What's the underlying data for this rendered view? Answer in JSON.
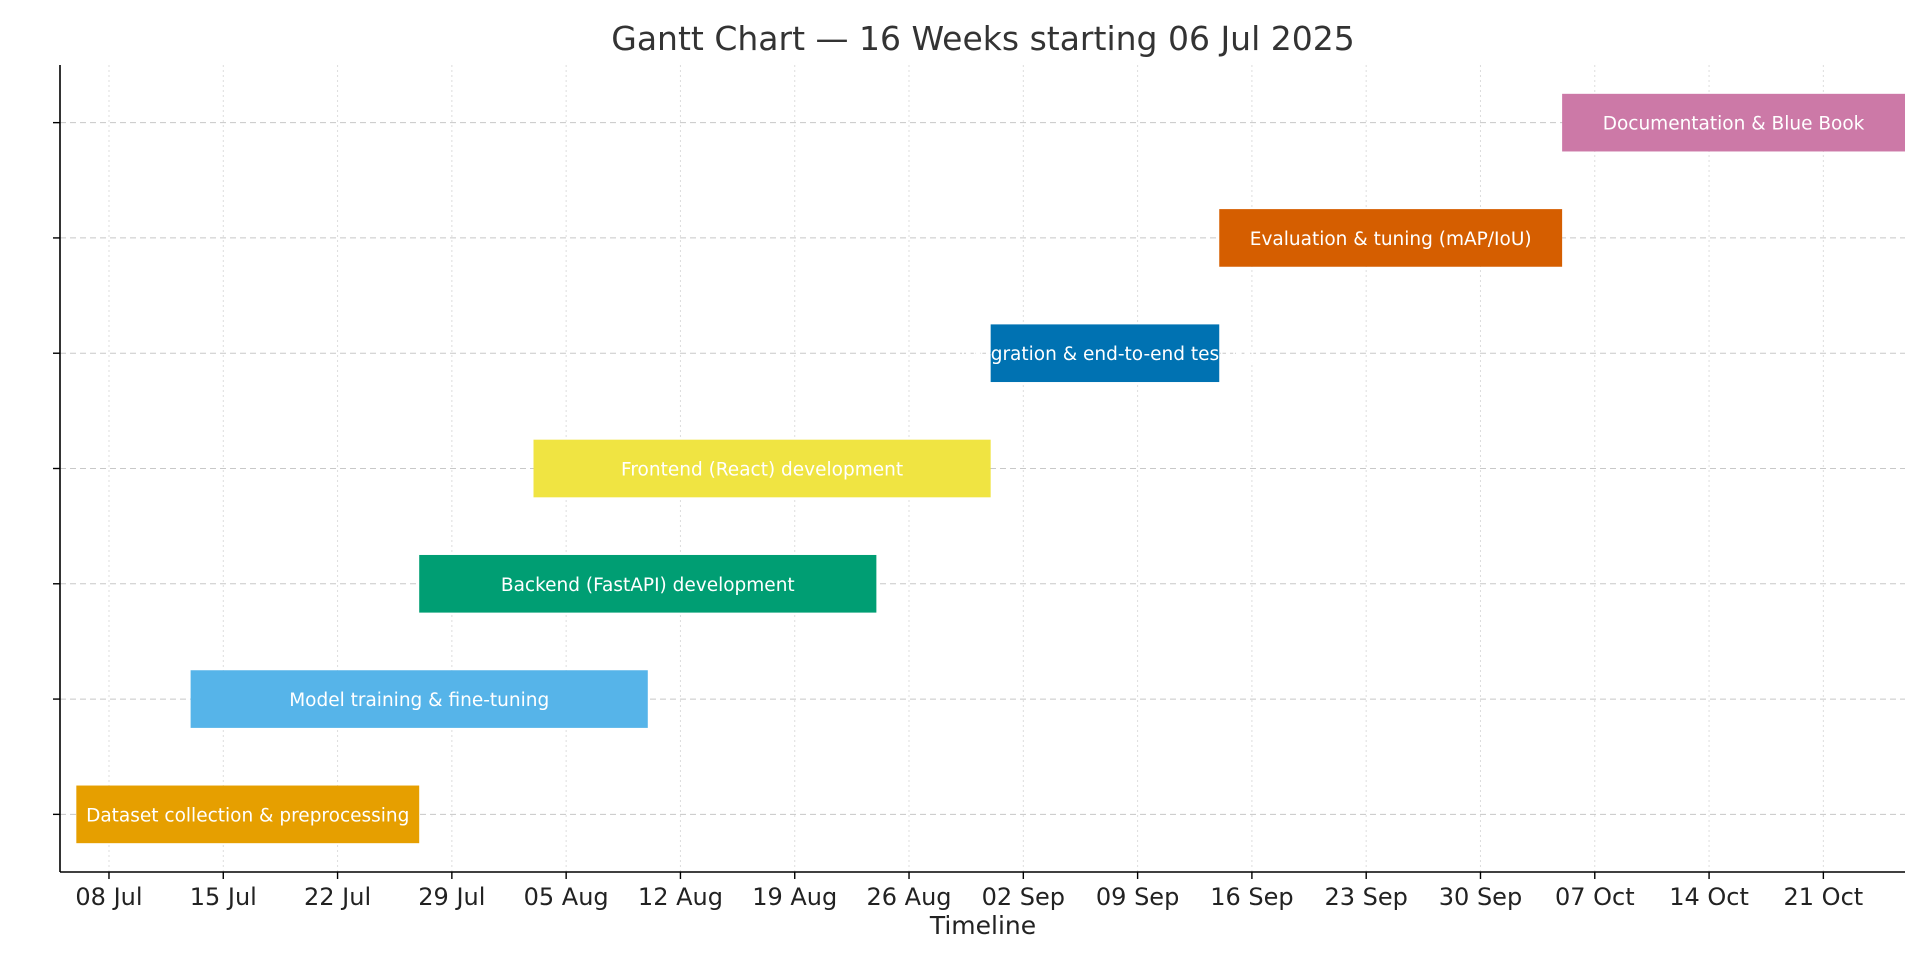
{
  "chart_data": {
    "type": "gantt",
    "title": "Gantt Chart — 16 Weeks starting 06 Jul 2025",
    "xlabel": "Timeline",
    "ylabel": "",
    "x_range": [
      "2025-07-05",
      "2025-10-26"
    ],
    "x_ticks": [
      "2025-07-08",
      "2025-07-15",
      "2025-07-22",
      "2025-07-29",
      "2025-08-05",
      "2025-08-12",
      "2025-08-19",
      "2025-08-26",
      "2025-09-02",
      "2025-09-09",
      "2025-09-16",
      "2025-09-23",
      "2025-09-30",
      "2025-10-07",
      "2025-10-14",
      "2025-10-21"
    ],
    "x_tick_labels": [
      "08 Jul",
      "15 Jul",
      "22 Jul",
      "29 Jul",
      "05 Aug",
      "12 Aug",
      "19 Aug",
      "26 Aug",
      "02 Sep",
      "09 Sep",
      "16 Sep",
      "23 Sep",
      "30 Sep",
      "07 Oct",
      "14 Oct",
      "21 Oct"
    ],
    "grid": {
      "x": true,
      "y": true
    },
    "tasks": [
      {
        "name": "Dataset collection & preprocessing",
        "start": "2025-07-06",
        "end": "2025-07-27",
        "color": "#E69F00"
      },
      {
        "name": "Model training & fine-tuning",
        "start": "2025-07-13",
        "end": "2025-08-10",
        "color": "#56B4E9"
      },
      {
        "name": "Backend (FastAPI) development",
        "start": "2025-07-27",
        "end": "2025-08-24",
        "color": "#009E73"
      },
      {
        "name": "Frontend (React) development",
        "start": "2025-08-03",
        "end": "2025-08-31",
        "color": "#F0E442"
      },
      {
        "name": "Integration & end-to-end testing",
        "start": "2025-08-31",
        "end": "2025-09-14",
        "color": "#0072B2"
      },
      {
        "name": "Evaluation & tuning (mAP/IoU)",
        "start": "2025-09-14",
        "end": "2025-10-05",
        "color": "#D55E00"
      },
      {
        "name": "Documentation & Blue Book",
        "start": "2025-10-05",
        "end": "2025-10-26",
        "color": "#CC79A7"
      }
    ]
  }
}
